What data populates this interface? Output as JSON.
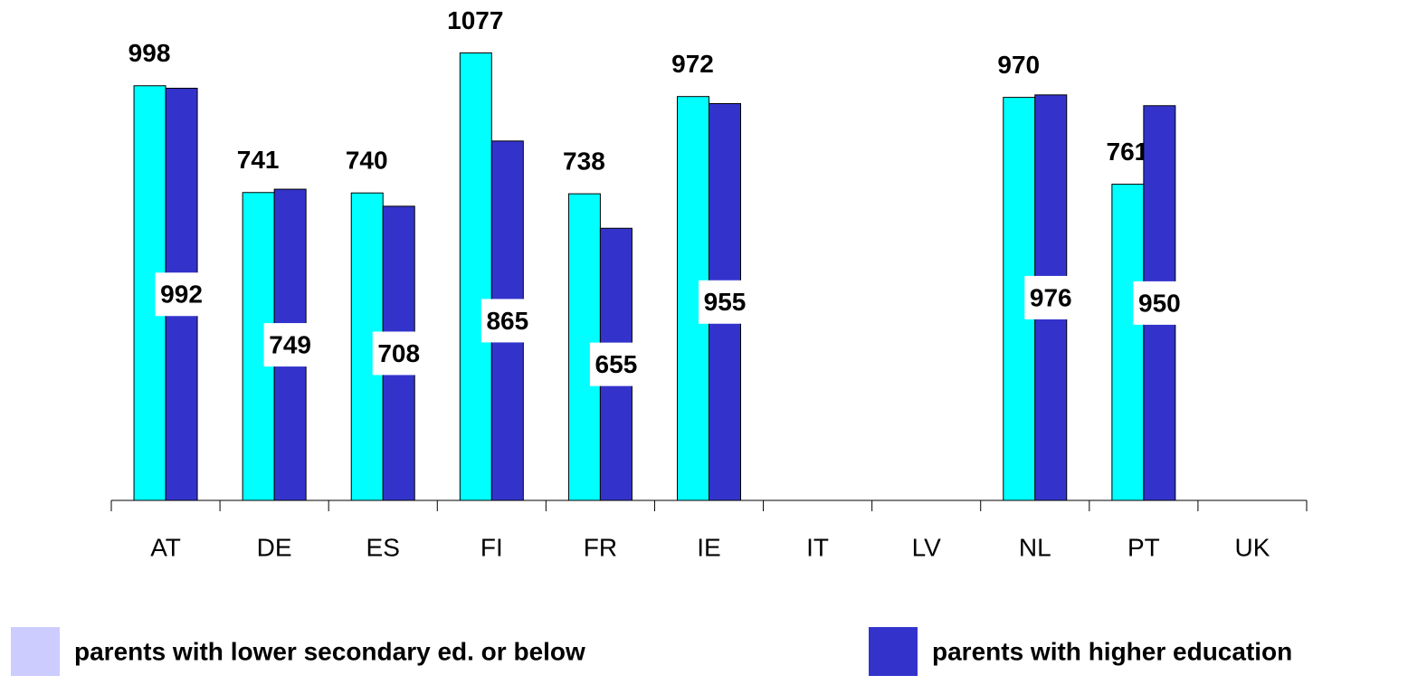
{
  "chart_data": {
    "type": "bar",
    "categories": [
      "AT",
      "DE",
      "ES",
      "FI",
      "FR",
      "IE",
      "IT",
      "LV",
      "NL",
      "PT",
      "UK"
    ],
    "series": [
      {
        "name": "parents with lower secondary ed. or below",
        "color": "#00ffff",
        "legend_color": "#ccccff",
        "values": [
          998,
          741,
          740,
          1077,
          738,
          972,
          null,
          null,
          970,
          761,
          null
        ]
      },
      {
        "name": "parents with higher education",
        "color": "#3333cc",
        "legend_color": "#3333cc",
        "values": [
          992,
          749,
          708,
          865,
          655,
          955,
          null,
          null,
          976,
          950,
          null
        ]
      }
    ],
    "ylim": [
      0,
      1200
    ]
  }
}
